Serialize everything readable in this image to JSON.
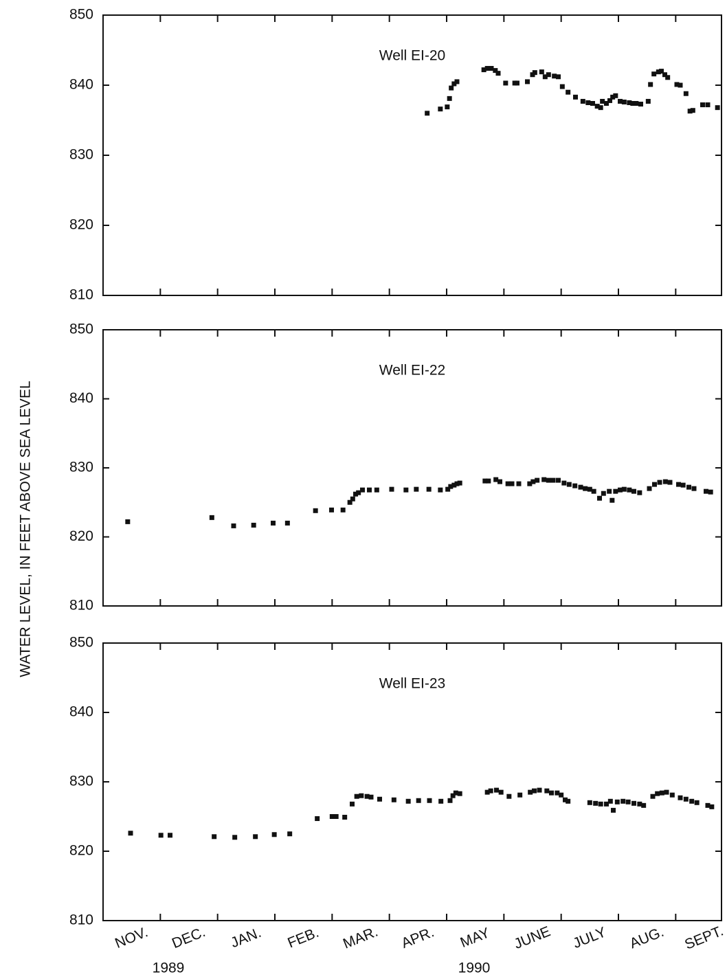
{
  "ylabel": "WATER LEVEL, IN FEET ABOVE SEA LEVEL",
  "month_labels": [
    "NOV.",
    "DEC.",
    "JAN.",
    "FEB.",
    "MAR.",
    "APR.",
    "MAY",
    "JUNE",
    "JULY",
    "AUG.",
    "SEPT."
  ],
  "years": [
    "1989",
    "1990"
  ],
  "chart_data": [
    {
      "type": "scatter",
      "title": "Well EI-20",
      "color": "#111111",
      "xlim": [
        0,
        10.8
      ],
      "xticks": [
        1,
        2,
        3,
        4,
        5,
        6,
        7,
        8,
        9,
        10
      ],
      "ylim": [
        810,
        850
      ],
      "yticks": [
        810,
        820,
        830,
        840,
        850
      ],
      "x": [
        5.66,
        5.89,
        6.01,
        6.05,
        6.08,
        6.13,
        6.18,
        6.65,
        6.71,
        6.78,
        6.85,
        6.9,
        7.03,
        7.19,
        7.23,
        7.41,
        7.5,
        7.54,
        7.66,
        7.72,
        7.78,
        7.88,
        7.95,
        8.02,
        8.12,
        8.25,
        8.38,
        8.47,
        8.55,
        8.63,
        8.69,
        8.72,
        8.79,
        8.85,
        8.9,
        8.95,
        9.03,
        9.1,
        9.19,
        9.25,
        9.31,
        9.39,
        9.52,
        9.56,
        9.62,
        9.7,
        9.75,
        9.81,
        9.86,
        10.02,
        10.08,
        10.18,
        10.25,
        10.3,
        10.47,
        10.56,
        10.73
      ],
      "values": [
        836.0,
        836.6,
        836.9,
        838.1,
        839.6,
        840.2,
        840.5,
        842.2,
        842.4,
        842.4,
        842.1,
        841.7,
        840.3,
        840.3,
        840.3,
        840.5,
        841.5,
        841.8,
        841.9,
        841.2,
        841.5,
        841.3,
        841.2,
        839.8,
        839.0,
        838.3,
        837.7,
        837.5,
        837.4,
        837.0,
        836.8,
        837.7,
        837.4,
        837.8,
        838.3,
        838.5,
        837.7,
        837.6,
        837.5,
        837.4,
        837.4,
        837.3,
        837.7,
        840.1,
        841.6,
        841.9,
        842.0,
        841.5,
        841.1,
        840.1,
        840.0,
        838.8,
        836.3,
        836.4,
        837.2,
        837.2,
        836.8
      ]
    },
    {
      "type": "scatter",
      "title": "Well EI-22",
      "color": "#111111",
      "xlim": [
        0,
        10.8
      ],
      "xticks": [
        1,
        2,
        3,
        4,
        5,
        6,
        7,
        8,
        9,
        10
      ],
      "ylim": [
        810,
        850
      ],
      "yticks": [
        810,
        820,
        830,
        840,
        850
      ],
      "x": [
        0.43,
        1.9,
        2.28,
        2.63,
        2.97,
        3.22,
        3.71,
        3.99,
        4.19,
        4.31,
        4.36,
        4.41,
        4.46,
        4.53,
        4.65,
        4.78,
        5.04,
        5.29,
        5.47,
        5.69,
        5.89,
        6.02,
        6.07,
        6.13,
        6.18,
        6.23,
        6.67,
        6.73,
        6.86,
        6.93,
        7.07,
        7.14,
        7.26,
        7.45,
        7.51,
        7.58,
        7.7,
        7.78,
        7.86,
        7.95,
        8.05,
        8.14,
        8.24,
        8.34,
        8.42,
        8.5,
        8.57,
        8.67,
        8.74,
        8.84,
        8.89,
        8.95,
        9.03,
        9.1,
        9.19,
        9.27,
        9.37,
        9.54,
        9.63,
        9.72,
        9.82,
        9.9,
        10.05,
        10.13,
        10.23,
        10.32,
        10.53,
        10.61
      ],
      "values": [
        822.2,
        822.8,
        821.6,
        821.7,
        822.0,
        822.0,
        823.8,
        823.9,
        823.9,
        825.0,
        825.5,
        826.2,
        826.4,
        826.8,
        826.8,
        826.8,
        826.9,
        826.8,
        826.9,
        826.9,
        826.8,
        826.9,
        827.3,
        827.5,
        827.7,
        827.8,
        828.1,
        828.1,
        828.3,
        828.0,
        827.7,
        827.7,
        827.7,
        827.7,
        828.0,
        828.2,
        828.3,
        828.2,
        828.2,
        828.2,
        827.8,
        827.6,
        827.4,
        827.2,
        827.0,
        826.9,
        826.6,
        825.6,
        826.3,
        826.6,
        825.3,
        826.6,
        826.8,
        826.9,
        826.8,
        826.6,
        826.4,
        827.0,
        827.6,
        827.9,
        828.0,
        827.9,
        827.6,
        827.5,
        827.2,
        827.0,
        826.6,
        826.5
      ]
    },
    {
      "type": "scatter",
      "title": "Well EI-23",
      "color": "#111111",
      "xlim": [
        0,
        10.8
      ],
      "xticks": [
        1,
        2,
        3,
        4,
        5,
        6,
        7,
        8,
        9,
        10
      ],
      "ylim": [
        810,
        850
      ],
      "yticks": [
        810,
        820,
        830,
        840,
        850
      ],
      "x": [
        0.48,
        1.01,
        1.17,
        1.94,
        2.3,
        2.66,
        2.99,
        3.26,
        3.74,
        4.0,
        4.07,
        4.22,
        4.35,
        4.43,
        4.51,
        4.61,
        4.68,
        4.83,
        5.08,
        5.33,
        5.51,
        5.7,
        5.9,
        6.06,
        6.11,
        6.16,
        6.23,
        6.71,
        6.77,
        6.87,
        6.95,
        7.09,
        7.28,
        7.46,
        7.53,
        7.62,
        7.75,
        7.83,
        7.93,
        8.0,
        8.07,
        8.12,
        8.5,
        8.6,
        8.69,
        8.79,
        8.86,
        8.91,
        8.98,
        9.08,
        9.17,
        9.27,
        9.37,
        9.44,
        9.6,
        9.68,
        9.76,
        9.84,
        9.94,
        10.08,
        10.18,
        10.28,
        10.37,
        10.56,
        10.63
      ],
      "values": [
        822.6,
        822.3,
        822.3,
        822.1,
        822.0,
        822.1,
        822.4,
        822.5,
        824.7,
        825.0,
        825.0,
        824.9,
        826.8,
        827.9,
        828.0,
        827.9,
        827.8,
        827.5,
        827.4,
        827.2,
        827.3,
        827.3,
        827.2,
        827.3,
        828.0,
        828.4,
        828.3,
        828.5,
        828.7,
        828.8,
        828.5,
        827.9,
        828.1,
        828.5,
        828.7,
        828.8,
        828.7,
        828.4,
        828.4,
        828.1,
        827.4,
        827.2,
        827.0,
        826.9,
        826.8,
        826.8,
        827.2,
        825.9,
        827.1,
        827.2,
        827.1,
        826.9,
        826.8,
        826.6,
        827.9,
        828.3,
        828.4,
        828.5,
        828.1,
        827.7,
        827.5,
        827.2,
        827.0,
        826.6,
        826.4
      ]
    }
  ]
}
